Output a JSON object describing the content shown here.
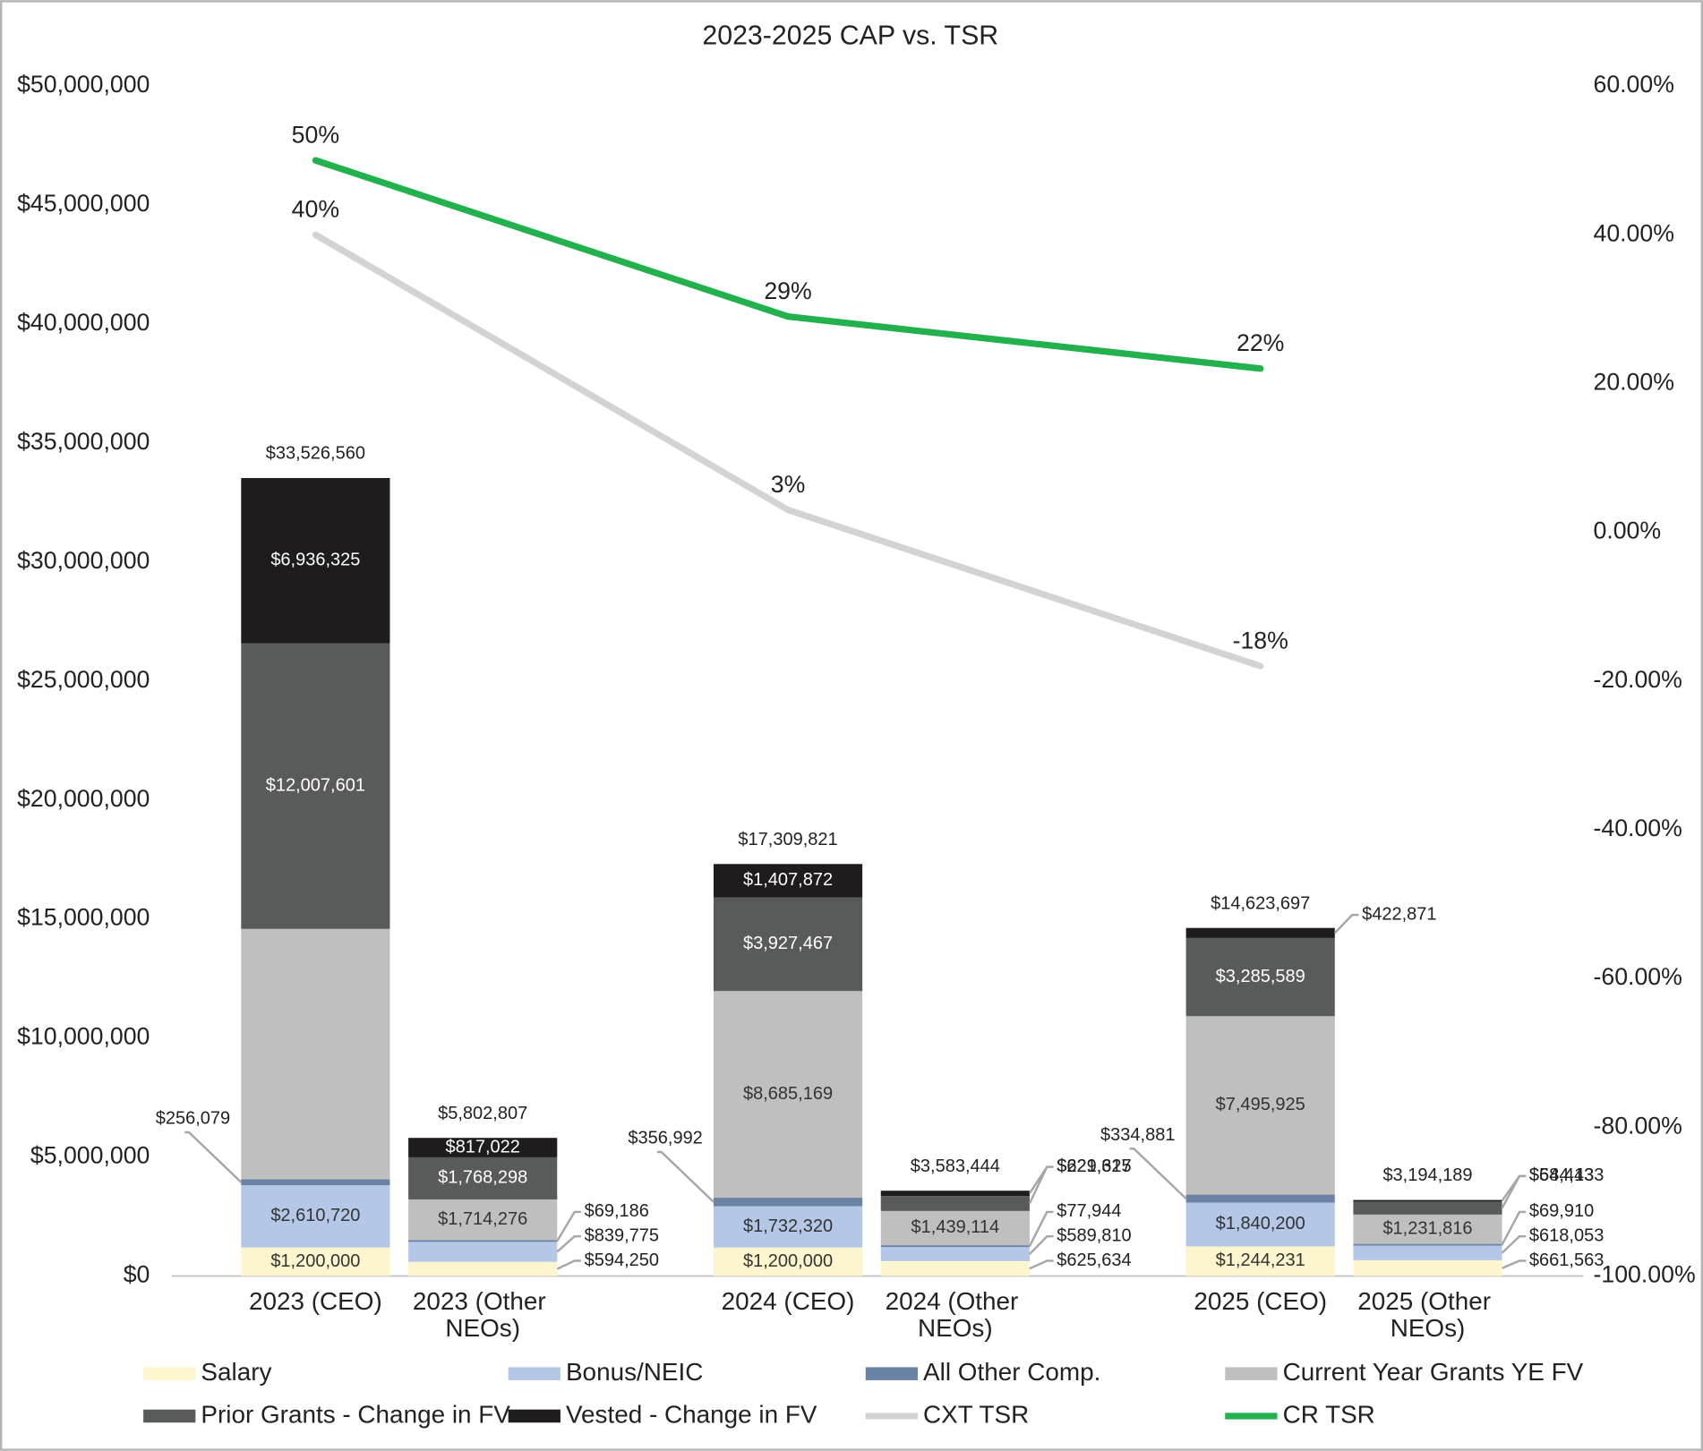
{
  "chart_data": {
    "type": "bar",
    "stacked": true,
    "title": "2023-2025 CAP vs. TSR",
    "categories": [
      "2023 (CEO)",
      "2023 (Other NEOs)",
      "2024 (CEO)",
      "2024 (Other NEOs)",
      "2025 (CEO)",
      "2025 (Other NEOs)"
    ],
    "series": [
      {
        "name": "Salary",
        "color": "#fdf5cd",
        "values": [
          1200000,
          594250,
          1200000,
          625634,
          1244231,
          661563
        ],
        "value_labels": [
          "$1,200,000",
          "$594,250",
          "$1,200,000",
          "$625,634",
          "$1,244,231",
          "$661,563"
        ]
      },
      {
        "name": "Bonus/NEIC",
        "color": "#b4c7e7",
        "values": [
          2610720,
          839775,
          1732320,
          589810,
          1840200,
          618053
        ],
        "value_labels": [
          "$2,610,720",
          "$839,775",
          "$1,732,320",
          "$589,810",
          "$1,840,200",
          "$618,053"
        ]
      },
      {
        "name": "All Other Comp.",
        "color": "#6a82a3",
        "values": [
          256079,
          69186,
          356992,
          77944,
          334881,
          69910
        ],
        "value_labels": [
          "$256,079",
          "$69,186",
          "$356,992",
          "$77,944",
          "$334,881",
          "$69,910"
        ]
      },
      {
        "name": "Current Year Grants YE FV",
        "color": "#bfbfbf",
        "values": [
          10515835,
          1714276,
          8685169,
          1439114,
          7495925,
          1231816
        ],
        "value_labels": [
          null,
          "$1,714,276",
          "$8,685,169",
          "$1,439,114",
          "$7,495,925",
          "$1,231,816"
        ]
      },
      {
        "name": "Prior Grants - Change in FV",
        "color": "#595b5a",
        "values": [
          12007601,
          1768298,
          3927467,
          629317,
          3285589,
          544433
        ],
        "value_labels": [
          "$12,007,601",
          "$1,768,298",
          "$3,927,467",
          "$629,317",
          "$3,285,589",
          "$544,433"
        ]
      },
      {
        "name": "Vested - Change in FV",
        "color": "#1e1c1c",
        "values": [
          6936325,
          817022,
          1407872,
          221625,
          422871,
          68413
        ],
        "value_labels": [
          "$6,936,325",
          "$817,022",
          "$1,407,872",
          "$221,625",
          "$422,871",
          "$68,413"
        ]
      }
    ],
    "totals": [
      33526560,
      5802807,
      17309821,
      3583444,
      14623697,
      3194189
    ],
    "total_labels": [
      "$33,526,560",
      "$5,802,807",
      "$17,309,821",
      "$3,583,444",
      "$14,623,697",
      "$3,194,189"
    ],
    "lines": [
      {
        "type": "line",
        "name": "CXT TSR",
        "color": "#d3d3d3",
        "axis": "y2",
        "categories": [
          "2023 (CEO)",
          "2024 (CEO)",
          "2025 (CEO)"
        ],
        "values": [
          40,
          3,
          -18
        ],
        "value_labels": [
          "40%",
          "3%",
          "-18%"
        ]
      },
      {
        "type": "line",
        "name": "CR TSR",
        "color": "#22b14c",
        "axis": "y2",
        "categories": [
          "2023 (CEO)",
          "2024 (CEO)",
          "2025 (CEO)"
        ],
        "values": [
          50,
          29,
          22
        ],
        "value_labels": [
          "50%",
          "29%",
          "22%"
        ]
      }
    ],
    "ylim": [
      0,
      50000000
    ],
    "yticks": [
      {
        "value": 0,
        "label": "$0"
      },
      {
        "value": 5000000,
        "label": "$5,000,000"
      },
      {
        "value": 10000000,
        "label": "$10,000,000"
      },
      {
        "value": 15000000,
        "label": "$15,000,000"
      },
      {
        "value": 20000000,
        "label": "$20,000,000"
      },
      {
        "value": 25000000,
        "label": "$25,000,000"
      },
      {
        "value": 30000000,
        "label": "$30,000,000"
      },
      {
        "value": 35000000,
        "label": "$35,000,000"
      },
      {
        "value": 40000000,
        "label": "$40,000,000"
      },
      {
        "value": 45000000,
        "label": "$45,000,000"
      },
      {
        "value": 50000000,
        "label": "$50,000,000"
      }
    ],
    "y2lim": [
      -100,
      60
    ],
    "y2ticks": [
      {
        "value": -100,
        "label": "-100.00%"
      },
      {
        "value": -80,
        "label": "-80.00%"
      },
      {
        "value": -60,
        "label": "-60.00%"
      },
      {
        "value": -40,
        "label": "-40.00%"
      },
      {
        "value": -20,
        "label": "-20.00%"
      },
      {
        "value": 0,
        "label": "0.00%"
      },
      {
        "value": 20,
        "label": "20.00%"
      },
      {
        "value": 40,
        "label": "40.00%"
      },
      {
        "value": 60,
        "label": "60.00%"
      }
    ],
    "grid": false,
    "legend": "bottom"
  }
}
